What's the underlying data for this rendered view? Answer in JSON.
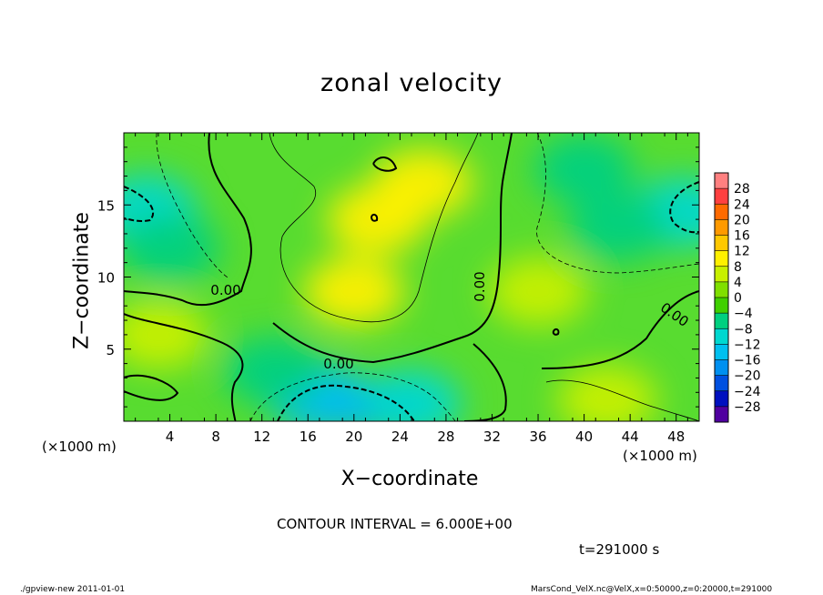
{
  "chart_data": {
    "type": "heatmap",
    "title": "zonal velocity",
    "xlabel": "X−coordinate",
    "ylabel": "Z−coordinate",
    "x_unit": "(×1000 m)",
    "xlim": [
      0,
      50
    ],
    "ylim": [
      0,
      20
    ],
    "x_ticks": [
      "4",
      "8",
      "12",
      "16",
      "20",
      "24",
      "28",
      "32",
      "36",
      "40",
      "44",
      "48"
    ],
    "x_tick_values": [
      4,
      8,
      12,
      16,
      20,
      24,
      28,
      32,
      36,
      40,
      44,
      48
    ],
    "y_ticks": [
      "5",
      "10",
      "15"
    ],
    "y_tick_values": [
      5,
      10,
      15
    ],
    "contour_interval": "CONTOUR INTERVAL = 6.000E+00",
    "contour_label": "0.00",
    "time_label": "t=291000 s",
    "colorbar": {
      "labels": [
        "28",
        "24",
        "20",
        "16",
        "12",
        "8",
        "4",
        "0",
        "−4",
        "−8",
        "−12",
        "−16",
        "−20",
        "−24",
        "−28"
      ],
      "colors": [
        "#ff8080",
        "#ff4040",
        "#ff6a00",
        "#ff9a00",
        "#ffc800",
        "#fff000",
        "#c8f000",
        "#80e000",
        "#40d000",
        "#00d080",
        "#00d8d0",
        "#00c0f0",
        "#0090f0",
        "#0050e0",
        "#0010c0",
        "#5000a0"
      ]
    },
    "blobs": [
      {
        "x": 21,
        "z": 1.0,
        "v": -20
      },
      {
        "x": 17,
        "z": 1.6,
        "v": -14
      },
      {
        "x": 25,
        "z": 1.2,
        "v": -11
      },
      {
        "x": 2,
        "z": 14.7,
        "v": -12
      },
      {
        "x": 4,
        "z": 12.0,
        "v": -6
      },
      {
        "x": 48.5,
        "z": 14.5,
        "v": -12
      },
      {
        "x": 43,
        "z": 13.5,
        "v": -9
      },
      {
        "x": 40,
        "z": 17.5,
        "v": -8
      },
      {
        "x": 22,
        "z": 14.0,
        "v": 10
      },
      {
        "x": 20,
        "z": 9.0,
        "v": 9
      },
      {
        "x": 26,
        "z": 16.5,
        "v": 8
      },
      {
        "x": 13,
        "z": 3.5,
        "v": -6
      },
      {
        "x": 3,
        "z": 6.0,
        "v": 4
      },
      {
        "x": 42,
        "z": 1.5,
        "v": 6
      },
      {
        "x": 36,
        "z": 9.0,
        "v": 3
      }
    ]
  },
  "footer": {
    "left": "./gpview-new  2011-01-01",
    "right": "MarsCond_VelX.nc@VelX,x=0:50000,z=0:20000,t=291000"
  }
}
